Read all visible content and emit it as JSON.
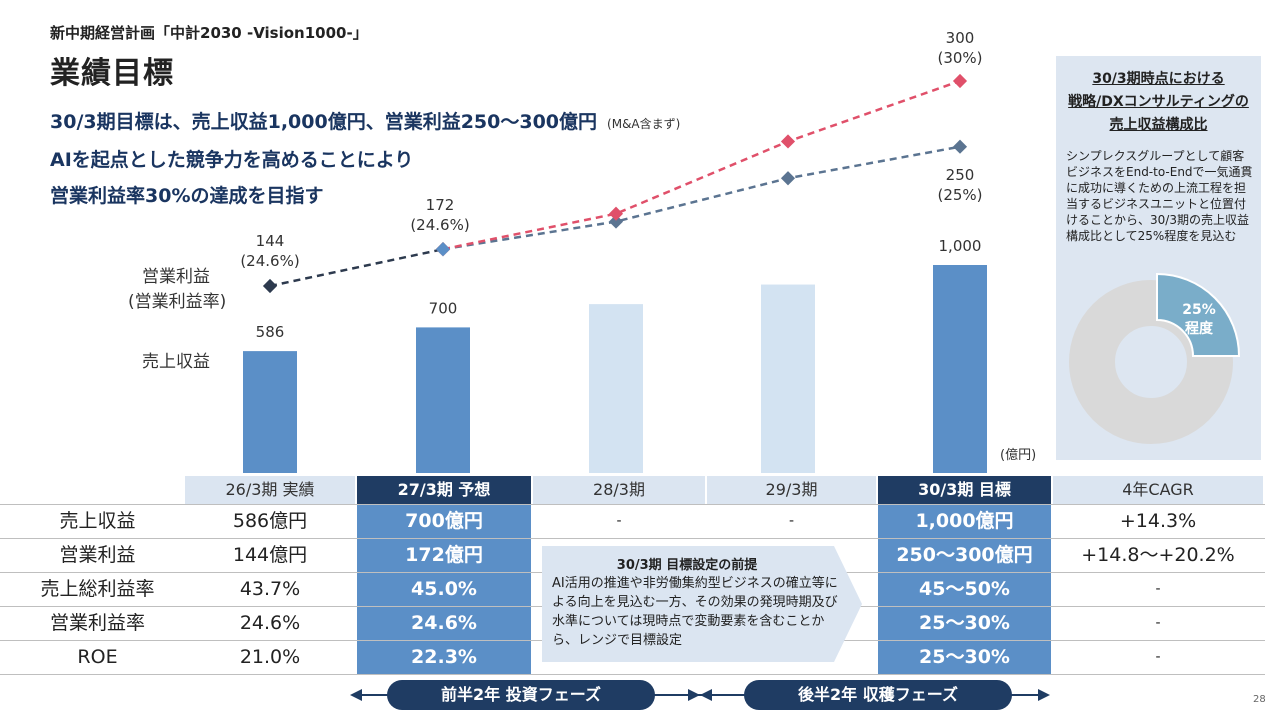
{
  "header": {
    "supertitle": "新中期経営計画「中計2030 -Vision1000-」",
    "title": "業績目標",
    "lead1": "30/3期目標は、売上収益1,000億円、営業利益250～300億円",
    "lead1_note": "(M&A含まず)",
    "lead2": "AIを起点とした競争力を高めることにより",
    "lead3": "営業利益率30%の達成を目指す"
  },
  "chart_data": {
    "type": "bar",
    "categories": [
      "26/3期",
      "27/3期",
      "28/3期",
      "29/3期",
      "30/3期"
    ],
    "unit": "(億円)",
    "row_labels": {
      "profit_line1": "営業利益",
      "profit_line2": "(営業利益率)",
      "revenue": "売上収益"
    },
    "revenue": {
      "values": [
        586,
        700,
        812,
        906,
        1000
      ],
      "labels": [
        "586",
        "700",
        "",
        "",
        "1,000"
      ],
      "colors": [
        "#5b8fc7",
        "#5b8fc7",
        "#d3e3f2",
        "#d3e3f2",
        "#5b8fc7"
      ]
    },
    "profit_actual": {
      "points": [
        {
          "x": 0,
          "y": 144
        },
        {
          "x": 1,
          "y": 172
        }
      ],
      "labels": [
        [
          "144",
          "(24.6%)"
        ],
        [
          "172",
          "(24.6%)"
        ]
      ],
      "color": "#2d3a4e"
    },
    "profit_high": {
      "points": [
        {
          "x": 1,
          "y": 172
        },
        {
          "x": 2,
          "y": 199
        },
        {
          "x": 3,
          "y": 254
        },
        {
          "x": 4,
          "y": 300
        }
      ],
      "end_label": [
        "300",
        "(30%)"
      ],
      "color": "#e0506a"
    },
    "profit_low": {
      "points": [
        {
          "x": 1,
          "y": 172
        },
        {
          "x": 2,
          "y": 193
        },
        {
          "x": 3,
          "y": 226
        },
        {
          "x": 4,
          "y": 250
        }
      ],
      "end_label": [
        "250",
        "(25%)"
      ],
      "color": "#5b7491"
    }
  },
  "panel": {
    "title_lines": [
      "30/3期時点における",
      "戦略/DXコンサルティングの",
      "売上収益構成比"
    ],
    "body": "シンプレクスグループとして顧客ビジネスをEnd-to-Endで一気通貫に成功に導くための上流工程を担当するビジネスユニットと位置付けることから、30/3期の売上収益構成比として25%程度を見込む",
    "donut": {
      "share": 0.25,
      "label1": "25%",
      "label2": "程度",
      "color": "#7aadc9",
      "rest_color": "#d9d9d9"
    }
  },
  "table": {
    "headers": [
      "26/3期 実績",
      "27/3期 予想",
      "28/3期",
      "29/3期",
      "30/3期 目標",
      "4年CAGR"
    ],
    "rows": [
      {
        "label": "売上収益",
        "c0": "586億円",
        "c1": "700億円",
        "c2": "-",
        "c3": "-",
        "c4": "1,000億円",
        "c5": "+14.3%"
      },
      {
        "label": "営業利益",
        "c0": "144億円",
        "c1": "172億円",
        "c4": "250～300億円",
        "c5": "+14.8～+20.2%"
      },
      {
        "label": "売上総利益率",
        "c0": "43.7%",
        "c1": "45.0%",
        "c4": "45～50%",
        "c5": "-"
      },
      {
        "label": "営業利益率",
        "c0": "24.6%",
        "c1": "24.6%",
        "c4": "25～30%",
        "c5": "-"
      },
      {
        "label": "ROE",
        "c0": "21.0%",
        "c1": "22.3%",
        "c4": "25～30%",
        "c5": "-"
      }
    ]
  },
  "premise": {
    "title": "30/3期 目標設定の前提",
    "body": "AI活用の推進や非労働集約型ビジネスの確立等による向上を見込む一方、その効果の発現時期及び水準については現時点で変動要素を含むことから、レンジで目標設定"
  },
  "phases": {
    "first": "前半2年 投資フェーズ",
    "second": "後半2年 収穫フェーズ"
  },
  "page_number": "28"
}
